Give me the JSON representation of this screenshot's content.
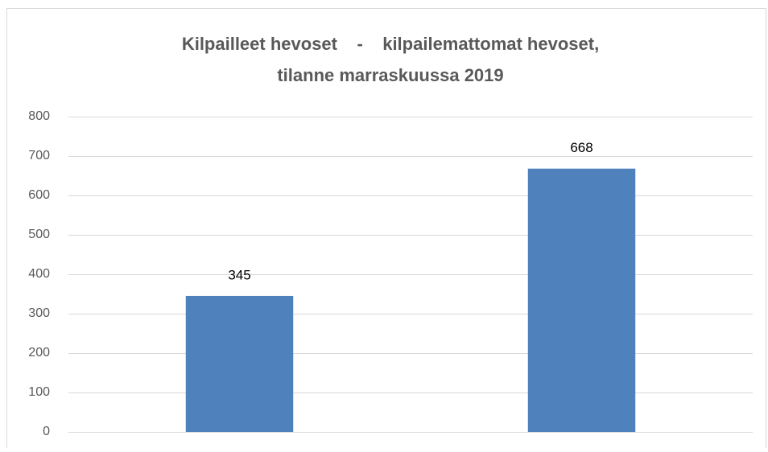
{
  "chart_data": {
    "type": "bar",
    "title": [
      "Kilpailleet hevoset    -    kilpailemattomat hevoset,",
      "tilanne marraskuussa 2019"
    ],
    "categories": [
      null,
      null
    ],
    "values": [
      345,
      668
    ],
    "color": "#4f81bd",
    "ylim": [
      0,
      800
    ],
    "yticks": [
      0,
      100,
      200,
      300,
      400,
      500,
      600,
      700,
      800
    ],
    "grid": true,
    "data_labels": true
  }
}
